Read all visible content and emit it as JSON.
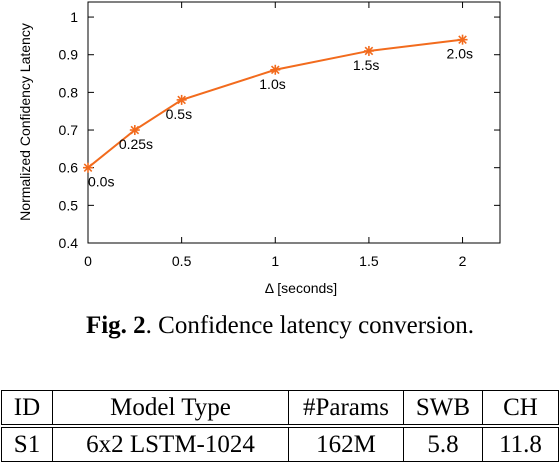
{
  "chart_data": {
    "type": "line",
    "x": [
      0,
      0.25,
      0.5,
      1.0,
      1.5,
      2.0
    ],
    "series": [
      {
        "values": [
          0.6,
          0.7,
          0.78,
          0.86,
          0.91,
          0.94
        ],
        "color": "#f26b1d",
        "marker": "asterisk"
      }
    ],
    "point_labels": [
      "0.0s",
      "0.25s",
      "0.5s",
      "1.0s",
      "1.5s",
      "2.0s"
    ],
    "xlabel": "Δ [seconds]",
    "ylabel": "Normalized Confidency Latency",
    "xlim": [
      0,
      2.2
    ],
    "ylim": [
      0.4,
      1.04
    ],
    "xticks": [
      "0",
      "0.5",
      "1",
      "1.5",
      "2"
    ],
    "yticks": [
      "0.4",
      "0.5",
      "0.6",
      "0.7",
      "0.8",
      "0.9",
      "1"
    ],
    "grid": false,
    "legend": "none"
  },
  "caption": {
    "label": "Fig. 2",
    "text": ". Confidence latency conversion."
  },
  "table": {
    "headers": [
      "ID",
      "Model Type",
      "#Params",
      "SWB",
      "CH"
    ],
    "rows": [
      [
        "S1",
        "6x2 LSTM-1024",
        "162M",
        "5.8",
        "11.8"
      ]
    ]
  }
}
